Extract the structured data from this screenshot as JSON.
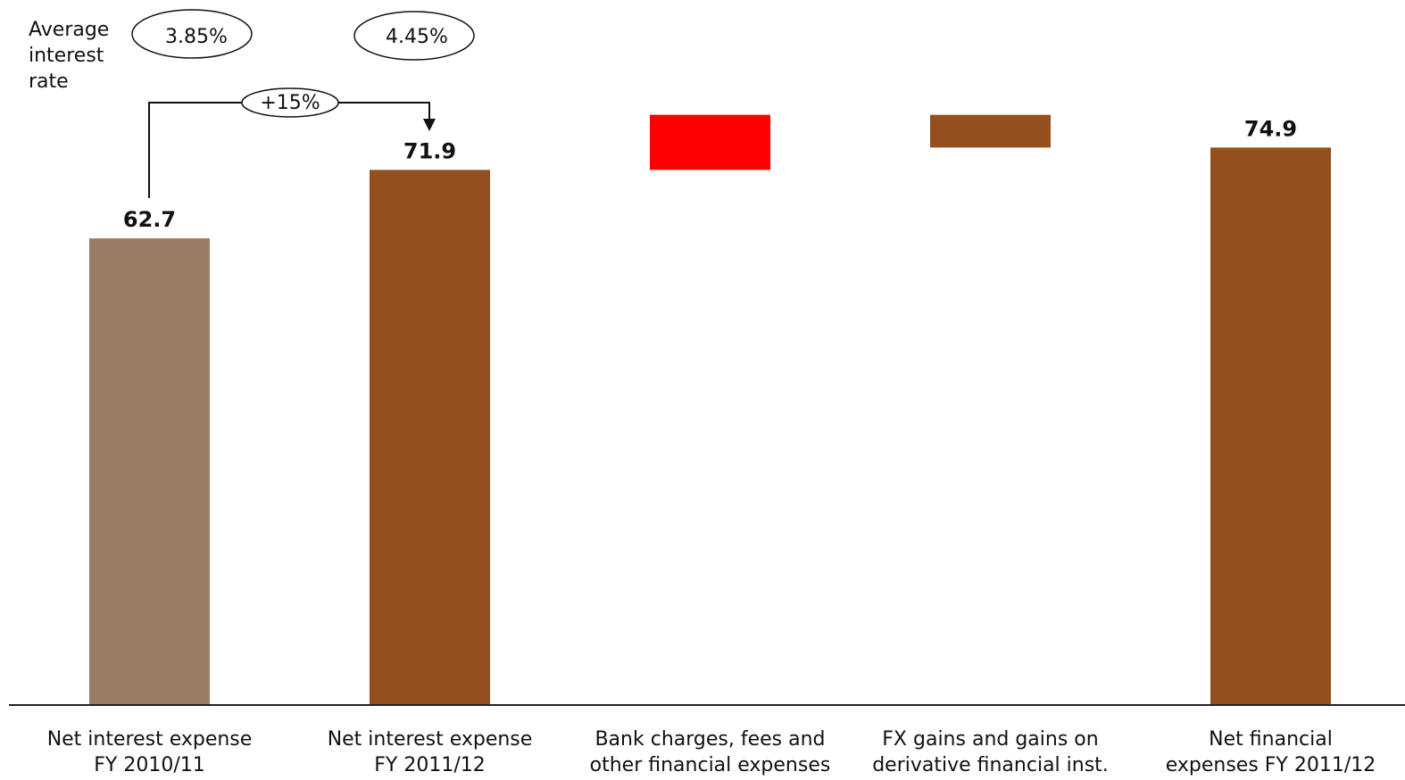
{
  "chart_data": {
    "type": "waterfall",
    "categories": [
      "Net interest expense\nFY 2010/11",
      "Net interest expense\nFY 2011/12",
      "Bank charges, fees and\nother financial expenses",
      "FX gains and gains on\nderivative financial inst.",
      "Net financial\nexpenses FY 2011/12"
    ],
    "values": [
      62.7,
      71.9,
      7.4,
      -4.4,
      74.9
    ],
    "measure": [
      "absolute",
      "absolute",
      "relative",
      "relative",
      "total"
    ],
    "colors": [
      "#9c7b63",
      "#944f1f",
      "#ff0000",
      "#944f1f",
      "#944f1f"
    ],
    "ylim": [
      0,
      95
    ],
    "annotations": {
      "rate_label": "Average\ninterest\nrate",
      "rates": [
        "3.85%",
        "4.45%"
      ],
      "growth": "+15%"
    }
  }
}
